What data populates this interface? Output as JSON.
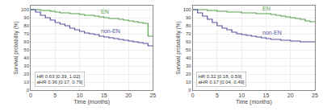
{
  "chart_data": [
    {
      "type": "line",
      "line_style": "step",
      "x": [
        0,
        1,
        2,
        3,
        4,
        5,
        6,
        7,
        8,
        9,
        10,
        11,
        12,
        13,
        14,
        15,
        16,
        17,
        18,
        19,
        20,
        21,
        22,
        23,
        24,
        25
      ],
      "series": [
        {
          "name": "EN",
          "color": "#5a9e50",
          "values": [
            100,
            100,
            99,
            99,
            98,
            97,
            96,
            96,
            95,
            95,
            94,
            93,
            93,
            92,
            91,
            90,
            89,
            89,
            88,
            87,
            86,
            85,
            84,
            83,
            67,
            67
          ]
        },
        {
          "name": "non-EN",
          "color": "#5555a0",
          "values": [
            100,
            97,
            93,
            90,
            87,
            84,
            82,
            80,
            77,
            75,
            73,
            71,
            70,
            69,
            67,
            66,
            65,
            64,
            63,
            62,
            61,
            60,
            59,
            58,
            55,
            55
          ]
        }
      ],
      "annotations": [
        "HR 0.63 [0.39, 1.02]\naHR 0.36 [0.17, 0.79]"
      ],
      "xlabel": "Time (months)",
      "ylabel": "Survival probability (%)",
      "xlim": [
        0,
        25
      ],
      "ylim": [
        0,
        105
      ],
      "xticks": [
        0,
        5,
        10,
        15,
        20,
        25
      ],
      "yticks": [
        0,
        10,
        20,
        30,
        40,
        50,
        60,
        70,
        80,
        90,
        100
      ],
      "grid": true
    },
    {
      "type": "line",
      "line_style": "step",
      "x": [
        0,
        1,
        2,
        3,
        4,
        5,
        6,
        7,
        8,
        9,
        10,
        11,
        12,
        13,
        14,
        15,
        16,
        17,
        18,
        19,
        20,
        21,
        22,
        23,
        24,
        25
      ],
      "series": [
        {
          "name": "EN",
          "color": "#5a9e50",
          "values": [
            100,
            100,
            100,
            99,
            99,
            98,
            98,
            97,
            97,
            97,
            96,
            96,
            96,
            95,
            95,
            95,
            94,
            93,
            92,
            91,
            90,
            89,
            88,
            86,
            85,
            85
          ]
        },
        {
          "name": "non-EN",
          "color": "#5555a0",
          "values": [
            100,
            96,
            92,
            88,
            84,
            80,
            77,
            75,
            72,
            70,
            69,
            68,
            67,
            66,
            65,
            64,
            63,
            63,
            62,
            62,
            61,
            61,
            60,
            60,
            60,
            60
          ]
        }
      ],
      "annotations": [
        "HR 0.32 [0.18, 0.59]\naHR 0.17 [0.04, 0.49]"
      ],
      "xlabel": "Time (months)",
      "ylabel": "Survival probability (%)",
      "xlim": [
        0,
        25
      ],
      "ylim": [
        0,
        105
      ],
      "xticks": [
        0,
        5,
        10,
        15,
        20,
        25
      ],
      "yticks": [
        0,
        10,
        20,
        30,
        40,
        50,
        60,
        70,
        80,
        90,
        100
      ],
      "grid": true
    }
  ]
}
